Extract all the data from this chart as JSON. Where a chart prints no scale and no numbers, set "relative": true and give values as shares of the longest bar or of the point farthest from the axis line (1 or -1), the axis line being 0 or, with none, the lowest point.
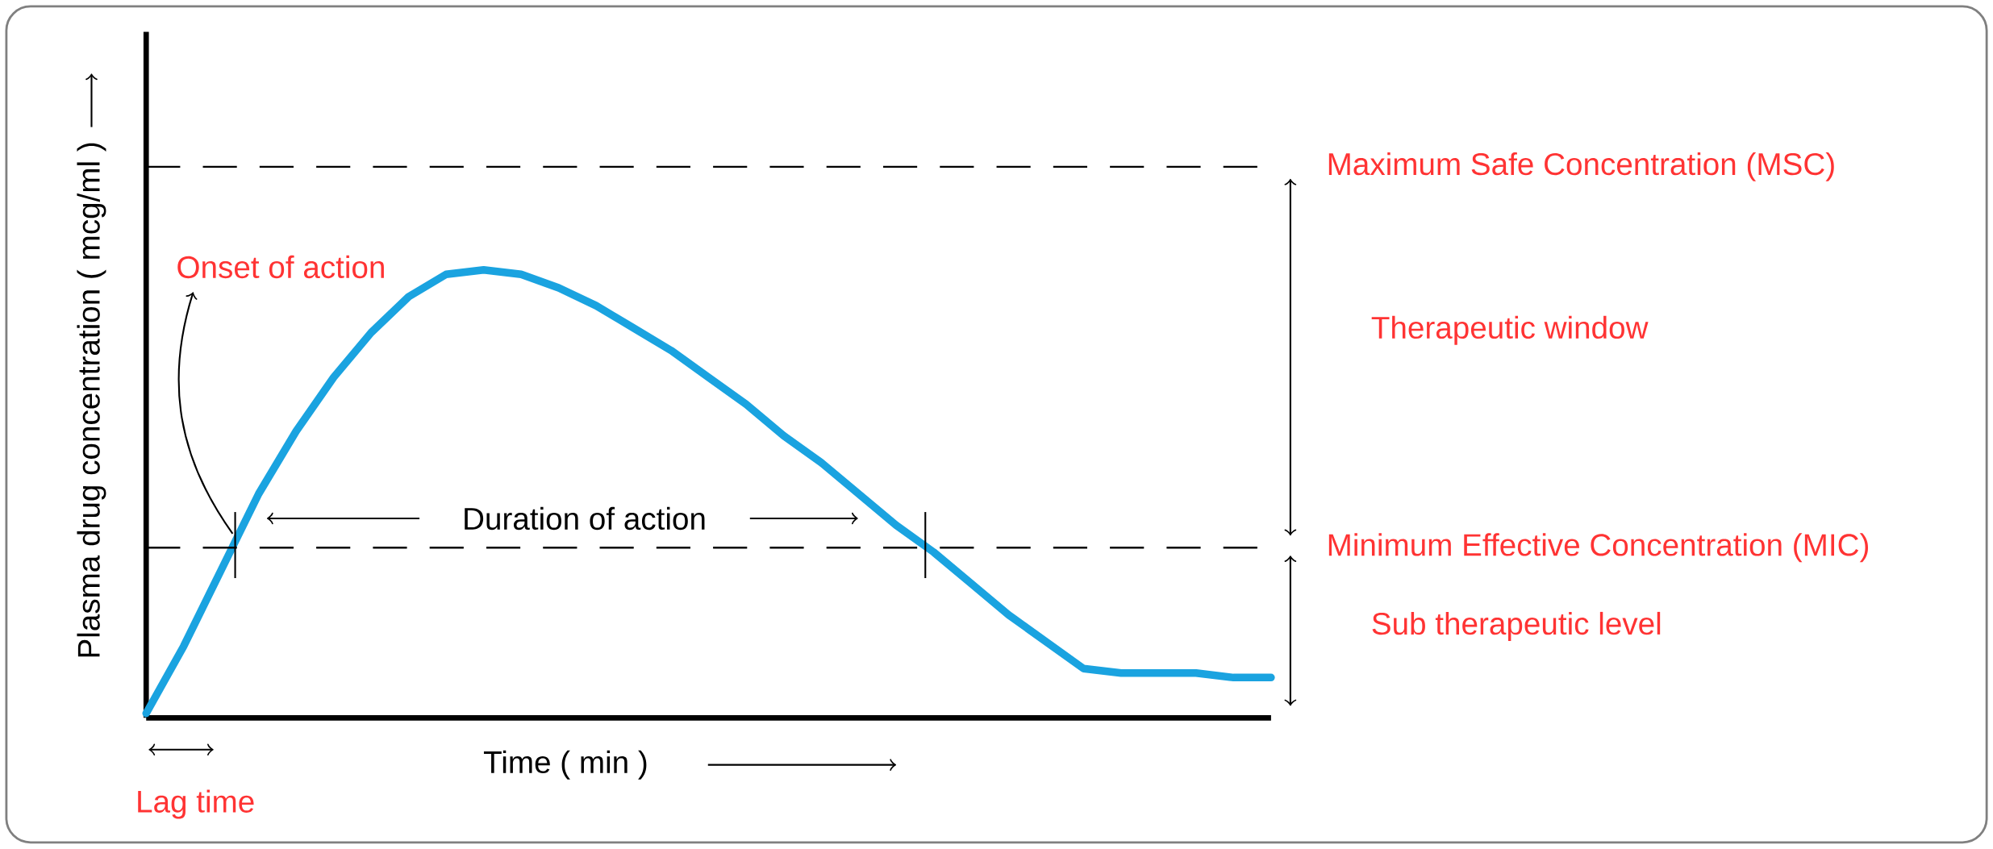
{
  "chart_data": {
    "type": "line",
    "relative": true,
    "xlabel": "Time ( min )",
    "ylabel": "Plasma drug concentration ( mcg/ml )",
    "categories": [
      null,
      null,
      null,
      null,
      null,
      null,
      null,
      null,
      null,
      null,
      null,
      null,
      null,
      null,
      null,
      null,
      null,
      null,
      null,
      null,
      null,
      null,
      null,
      null,
      null,
      null,
      null,
      null,
      null,
      null,
      null
    ],
    "series": [
      {
        "color": "#1aa3e0",
        "values": [
          0.01,
          0.16,
          0.33,
          0.5,
          0.64,
          0.76,
          0.86,
          0.94,
          0.99,
          1.0,
          0.99,
          0.96,
          0.92,
          0.87,
          0.82,
          0.76,
          0.7,
          0.63,
          0.57,
          0.5,
          0.43,
          0.37,
          0.3,
          0.23,
          0.17,
          0.11,
          0.1,
          0.1,
          0.1,
          0.09,
          0.09
        ]
      }
    ],
    "ref_lines": [
      {
        "axis": "y",
        "value": 1.23,
        "label": "Maximum Safe Concentration (MSC)",
        "color": "#000000",
        "line_style": "dashed"
      },
      {
        "axis": "y",
        "value": 0.38,
        "label": "Minimum Effective Concentration (MIC)",
        "color": "#000000",
        "line_style": "dashed"
      }
    ],
    "annotations": [
      "Therapeutic window",
      "Sub therapeutic level",
      "Onset of action",
      "Duration of action",
      "Lag time"
    ]
  }
}
